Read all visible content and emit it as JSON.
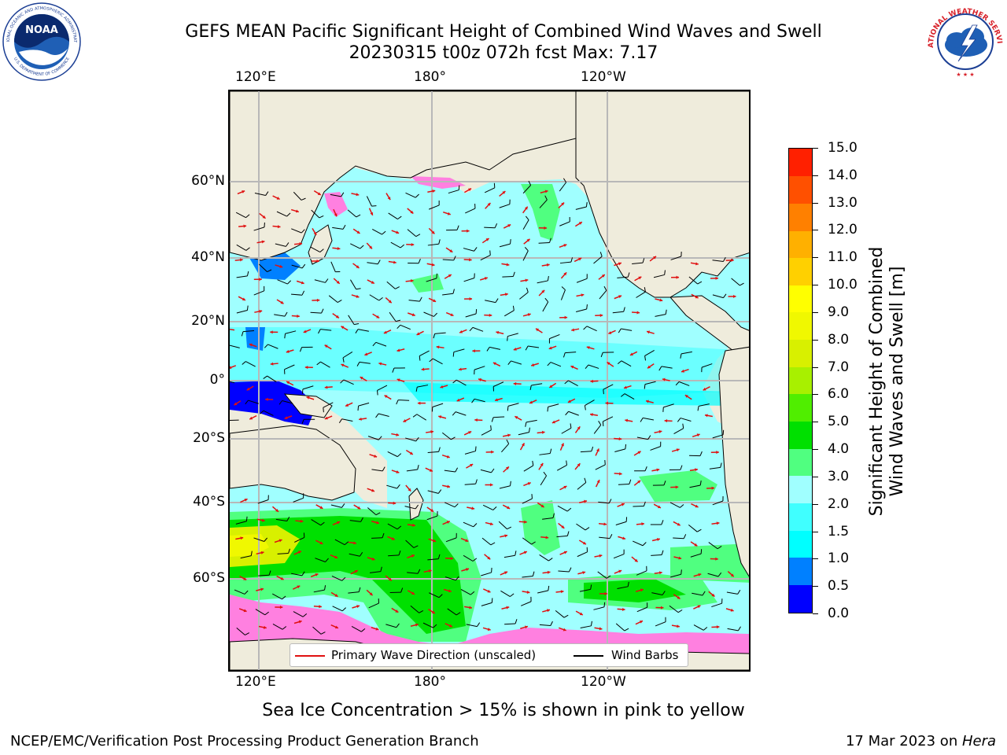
{
  "title": {
    "line1": "GEFS MEAN Pacific Significant Height of Combined Wind Waves and Swell",
    "line2": "20230315 t00z 072h fcst   Max: 7.17"
  },
  "axes": {
    "lon_labels": [
      "120°E",
      "180°",
      "120°W"
    ],
    "lat_labels": [
      "60°N",
      "40°N",
      "20°N",
      "0°",
      "20°S",
      "40°S",
      "60°S"
    ]
  },
  "legend": {
    "wave_label": "Primary Wave Direction (unscaled)",
    "barb_label": "Wind Barbs",
    "wave_color": "#e01010",
    "barb_color": "#000000"
  },
  "colorbar": {
    "title_line1": "Significant Height of Combined",
    "title_line2": "Wind Waves and Swell [m]",
    "tick_labels": [
      "0.0",
      "0.5",
      "1.0",
      "1.5",
      "2.0",
      "3.0",
      "4.0",
      "5.0",
      "6.0",
      "7.0",
      "8.0",
      "9.0",
      "10.0",
      "11.0",
      "12.0",
      "13.0",
      "14.0",
      "15.0"
    ],
    "colors": [
      "#0000ff",
      "#0080ff",
      "#00ffff",
      "#40ffff",
      "#a0ffff",
      "#50ff80",
      "#00e000",
      "#50ee00",
      "#a8f000",
      "#d8f000",
      "#f0f800",
      "#ffff00",
      "#ffd000",
      "#ffb000",
      "#ff8000",
      "#ff5000",
      "#ff2000"
    ]
  },
  "logos": {
    "noaa_text": "NOAA",
    "noaa_ring_text": "NATIONAL OCEANIC AND ATMOSPHERIC ADMINISTRATION",
    "noaa_ring_text_bottom": "U.S. DEPARTMENT OF COMMERCE",
    "nws_ring_text": "NATIONAL WEATHER SERVICE"
  },
  "note": "Sea Ice Concentration > 15% is shown in pink to yellow",
  "footer": {
    "left": "NCEP/EMC/Verification Post Processing Product Generation Branch",
    "right_prefix": "17 Mar 2023 on ",
    "right_host": "Hera"
  }
}
